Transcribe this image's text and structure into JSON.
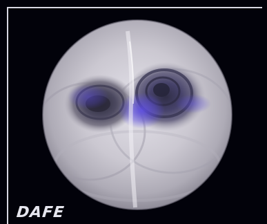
{
  "logo": {
    "text": "DAFE"
  },
  "colors": {
    "background": "#02020a",
    "border": "#d9d9e2",
    "lumen_tissue": "#c9c6cf",
    "dark_lumen": "#2a2838",
    "blue_tint": "#4b3fd1",
    "logo_text": "#e6e6ef"
  }
}
